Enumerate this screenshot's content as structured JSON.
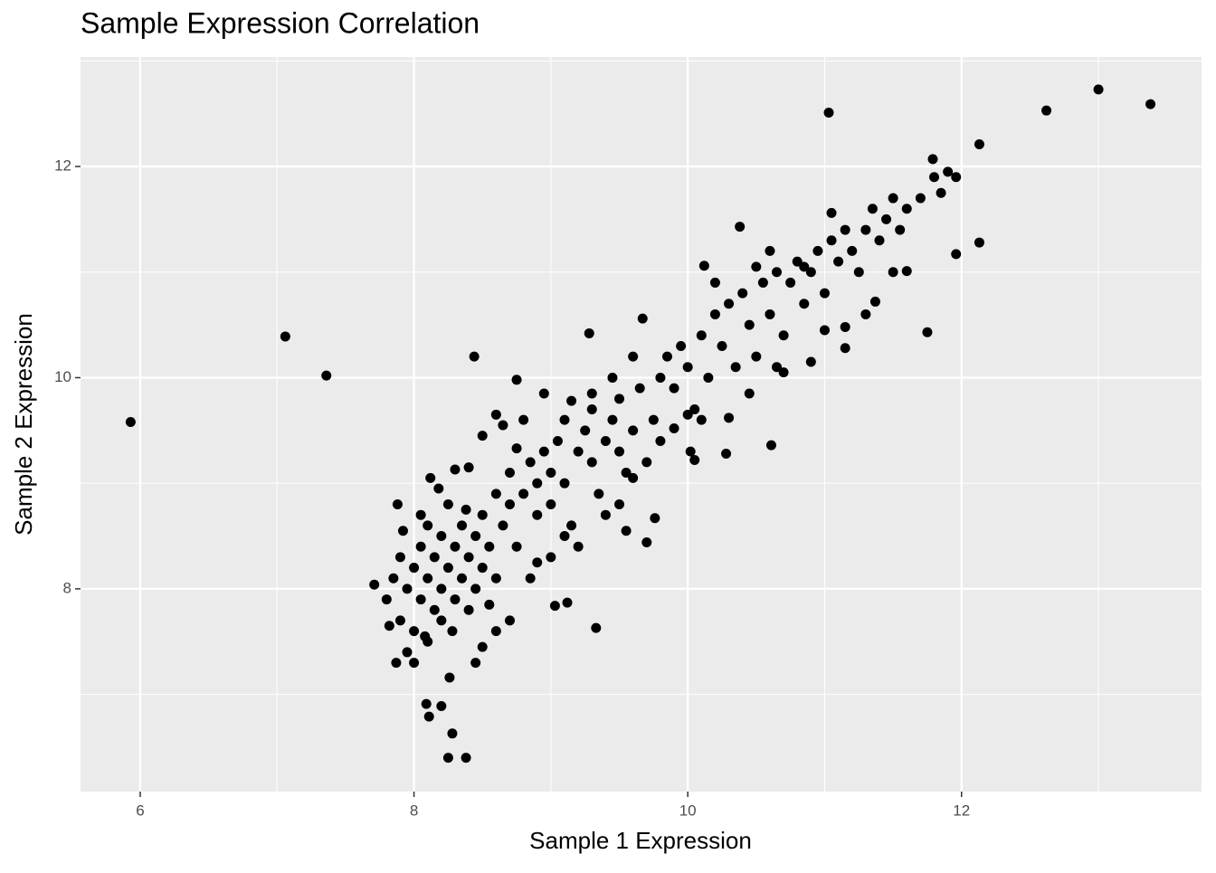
{
  "chart_data": {
    "type": "scatter",
    "title": "Sample Expression Correlation",
    "x_label": "Sample 1 Expression",
    "y_label": "Sample 2 Expression",
    "x": [
      5.93,
      7.06,
      7.36,
      11.03,
      12.62,
      13.0,
      13.38,
      12.13,
      12.13,
      11.96,
      11.75,
      10.61,
      9.33,
      8.09,
      8.2,
      8.11,
      8.28,
      8.25,
      8.38,
      10.12,
      10.38,
      9.67,
      9.28,
      8.44,
      8.75,
      7.71,
      7.87,
      8.26,
      11.05,
      11.37,
      11.6,
      11.96,
      11.79,
      9.03,
      9.12,
      9.7,
      9.76,
      7.8,
      7.85,
      7.9,
      7.9,
      7.95,
      8.0,
      8.0,
      8.05,
      8.05,
      8.1,
      8.1,
      8.1,
      8.15,
      8.15,
      8.2,
      8.2,
      8.2,
      8.25,
      8.25,
      8.3,
      8.3,
      8.35,
      8.35,
      8.4,
      8.4,
      8.45,
      8.45,
      8.5,
      8.5,
      8.55,
      8.6,
      8.6,
      7.95,
      8.0,
      8.05,
      7.88,
      8.12,
      8.3,
      8.4,
      8.5,
      8.45,
      8.6,
      8.7,
      8.55,
      7.82,
      7.92,
      8.08,
      8.18,
      8.28,
      8.38,
      8.65,
      8.7,
      8.7,
      8.75,
      8.8,
      8.85,
      8.9,
      8.9,
      8.95,
      9.0,
      9.0,
      9.05,
      9.1,
      9.1,
      9.15,
      9.2,
      9.25,
      9.3,
      9.3,
      9.35,
      9.4,
      9.45,
      9.5,
      9.5,
      9.55,
      9.6,
      9.65,
      9.7,
      9.75,
      9.8,
      9.8,
      8.8,
      8.95,
      9.0,
      9.1,
      8.85,
      8.9,
      9.4,
      9.5,
      9.55,
      9.6,
      9.2,
      8.6,
      8.75,
      8.5,
      9.3,
      9.45,
      9.6,
      9.15,
      8.65,
      9.85,
      9.9,
      9.95,
      10.0,
      10.05,
      10.1,
      10.15,
      10.2,
      10.25,
      10.3,
      10.35,
      10.4,
      10.45,
      10.5,
      10.55,
      10.6,
      10.65,
      10.7,
      10.75,
      10.8,
      10.85,
      10.9,
      10.95,
      11.0,
      11.05,
      11.1,
      11.15,
      11.2,
      11.25,
      11.3,
      11.35,
      11.4,
      11.45,
      11.5,
      11.55,
      11.6,
      11.7,
      11.8,
      11.9,
      11.85,
      10.02,
      10.1,
      10.05,
      10.28,
      10.45,
      10.7,
      10.9,
      11.15,
      11.15,
      10.3,
      10.0,
      9.9,
      10.65,
      11.0,
      11.3,
      11.5,
      10.85,
      10.5,
      10.2,
      10.6
    ],
    "y": [
      9.58,
      10.39,
      10.02,
      12.51,
      12.53,
      12.73,
      12.59,
      12.21,
      11.28,
      11.17,
      10.43,
      9.36,
      7.63,
      6.91,
      6.89,
      6.79,
      6.63,
      6.4,
      6.4,
      11.06,
      11.43,
      10.56,
      10.42,
      10.2,
      9.98,
      8.04,
      7.3,
      7.16,
      11.56,
      10.72,
      11.01,
      11.9,
      12.07,
      7.84,
      7.87,
      8.44,
      8.67,
      7.9,
      8.1,
      8.3,
      7.7,
      8.0,
      8.2,
      7.6,
      8.4,
      7.9,
      8.1,
      8.6,
      7.5,
      8.3,
      7.8,
      8.0,
      8.5,
      7.7,
      8.2,
      8.8,
      7.9,
      8.4,
      8.1,
      8.6,
      7.8,
      8.3,
      8.5,
      8.0,
      8.7,
      8.2,
      8.4,
      8.9,
      8.1,
      7.4,
      7.3,
      8.7,
      8.8,
      9.05,
      9.13,
      9.15,
      7.45,
      7.3,
      7.6,
      7.7,
      7.85,
      7.65,
      8.55,
      7.55,
      8.95,
      7.6,
      8.75,
      8.6,
      8.8,
      9.1,
      8.4,
      8.9,
      9.2,
      8.7,
      9.0,
      9.3,
      8.8,
      9.1,
      9.4,
      9.0,
      9.6,
      8.6,
      9.3,
      9.5,
      9.2,
      9.7,
      8.9,
      9.4,
      9.6,
      9.3,
      9.8,
      9.1,
      9.5,
      9.9,
      9.2,
      9.6,
      10.0,
      9.4,
      9.6,
      9.85,
      8.3,
      8.5,
      8.1,
      8.25,
      8.7,
      8.8,
      8.55,
      9.05,
      8.4,
      9.65,
      9.33,
      9.45,
      9.85,
      10.0,
      10.2,
      9.78,
      9.55,
      10.2,
      9.9,
      10.3,
      10.1,
      9.7,
      10.4,
      10.0,
      10.6,
      10.3,
      10.7,
      10.1,
      10.8,
      10.5,
      10.2,
      10.9,
      10.6,
      11.0,
      10.4,
      10.9,
      11.1,
      10.7,
      11.0,
      11.2,
      10.8,
      11.3,
      11.1,
      11.4,
      11.2,
      11.0,
      11.4,
      11.6,
      11.3,
      11.5,
      11.7,
      11.4,
      11.6,
      11.7,
      11.9,
      11.95,
      11.75,
      9.3,
      9.6,
      9.22,
      9.28,
      9.85,
      10.05,
      10.15,
      10.28,
      10.48,
      9.62,
      9.65,
      9.52,
      10.1,
      10.45,
      10.6,
      11.0,
      11.05,
      11.05,
      10.9,
      11.2
    ],
    "color": "#000000",
    "xlim": [
      5.564,
      13.753
    ],
    "ylim": [
      6.08,
      13.037
    ],
    "xticks": [
      6,
      8,
      10,
      12
    ],
    "yticks": [
      8,
      10,
      12
    ],
    "x_minor_grid": [
      7,
      9,
      11,
      13
    ],
    "y_minor_grid": [
      7,
      9,
      11,
      13
    ],
    "grid": true,
    "panel_background": "#ebebeb"
  }
}
